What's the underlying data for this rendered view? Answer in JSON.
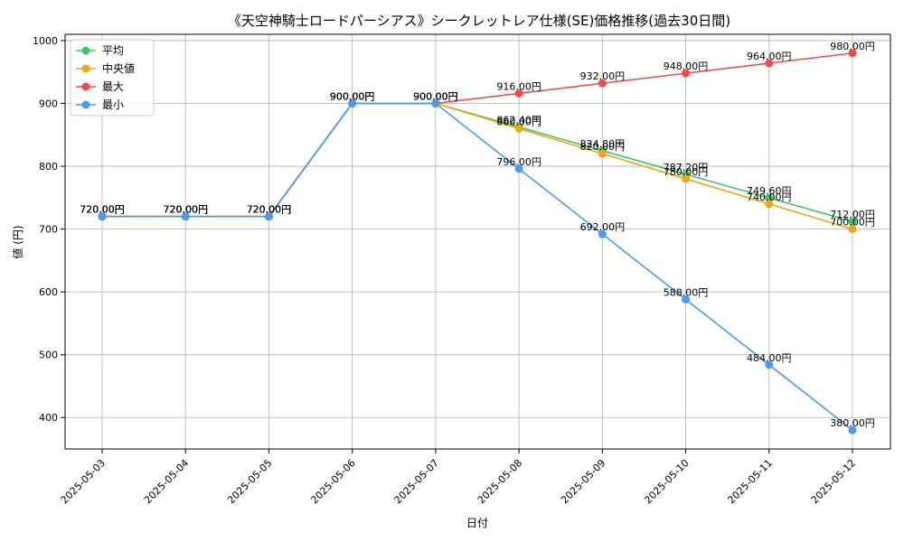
{
  "chart_data": {
    "type": "line",
    "title": "《天空神騎士ロードパーシアス》シークレットレア仕様(SE)価格推移(過去30日間)",
    "xlabel": "日付",
    "ylabel": "値 (円)",
    "ylim": [
      350,
      1010
    ],
    "yticks": [
      400,
      500,
      600,
      700,
      800,
      900,
      1000
    ],
    "grid": true,
    "legend_position": "top-left",
    "label_suffix": "円",
    "categories": [
      "2025-05-03",
      "2025-05-04",
      "2025-05-05",
      "2025-05-06",
      "2025-05-07",
      "2025-05-08",
      "2025-05-09",
      "2025-05-10",
      "2025-05-11",
      "2025-05-12"
    ],
    "series": [
      {
        "name": "平均",
        "color": "#3cc86e",
        "values": [
          720,
          720,
          720,
          900,
          900,
          862.4,
          824.8,
          787.2,
          749.6,
          712
        ]
      },
      {
        "name": "中央値",
        "color": "#f5a414",
        "values": [
          720,
          720,
          720,
          900,
          900,
          860,
          820,
          780,
          740,
          700
        ]
      },
      {
        "name": "最大",
        "color": "#f04a4a",
        "values": [
          720,
          720,
          720,
          900,
          900,
          916,
          932,
          948,
          964,
          980
        ]
      },
      {
        "name": "最小",
        "color": "#4a9af0",
        "values": [
          720,
          720,
          720,
          900,
          900,
          796,
          692,
          588,
          484,
          380
        ]
      }
    ]
  }
}
